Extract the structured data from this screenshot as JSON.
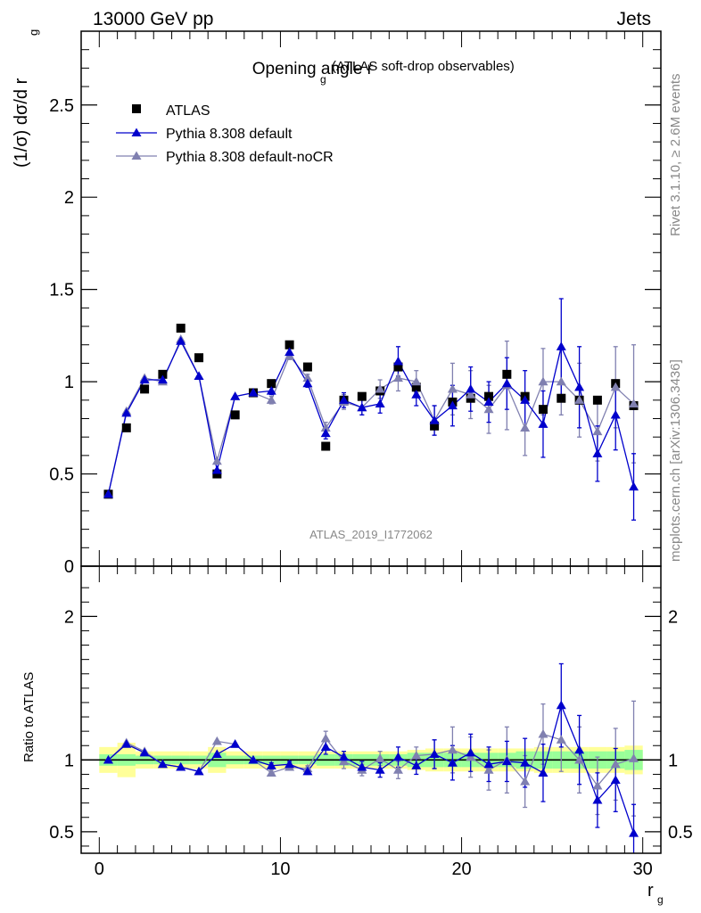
{
  "header": {
    "left": "13000 GeV pp",
    "right": "Jets"
  },
  "side_labels": {
    "rivet": "Rivet 3.1.10, ≥ 2.6M events",
    "mcplots": "mcplots.cern.ch [arXiv:1306.3436]"
  },
  "chart_data": [
    {
      "type": "scatter",
      "title": "Opening angle r",
      "title_sub": "g",
      "title_suffix": "(ATLAS soft-drop observables)",
      "watermark": "ATLAS_2019_I1772062",
      "ylabel": "(1/σ) dσ/d r",
      "ylabel_sub": "g",
      "xlim": [
        -1,
        31
      ],
      "ylim": [
        0,
        2.9
      ],
      "yticks": [
        0,
        0.5,
        1,
        1.5,
        2,
        2.5
      ],
      "ytick_labels": [
        "0",
        "0.5",
        "1",
        "1.5",
        "2",
        "2.5"
      ],
      "x": [
        0.5,
        1.5,
        2.5,
        3.5,
        4.5,
        5.5,
        6.5,
        7.5,
        8.5,
        9.5,
        10.5,
        11.5,
        12.5,
        13.5,
        14.5,
        15.5,
        16.5,
        17.5,
        18.5,
        19.5,
        20.5,
        21.5,
        22.5,
        23.5,
        24.5,
        25.5,
        26.5,
        27.5,
        28.5,
        29.5
      ],
      "series": [
        {
          "name": "ATLAS",
          "color": "#000000",
          "marker": "square",
          "values": [
            0.39,
            0.75,
            0.96,
            1.04,
            1.29,
            1.13,
            0.5,
            0.82,
            0.94,
            0.99,
            1.2,
            1.08,
            0.65,
            0.9,
            0.92,
            0.95,
            1.08,
            0.97,
            0.76,
            0.89,
            0.91,
            0.92,
            1.04,
            0.92,
            0.85,
            0.91,
            0.9,
            0.9,
            0.99,
            0.87
          ]
        },
        {
          "name": "Pythia 8.308 default",
          "color": "#0000cc",
          "marker": "triangle",
          "values": [
            0.39,
            0.83,
            1.01,
            1.01,
            1.22,
            1.03,
            0.52,
            0.92,
            0.94,
            0.95,
            1.16,
            0.99,
            0.72,
            0.9,
            0.86,
            0.88,
            1.11,
            0.93,
            0.79,
            0.87,
            0.96,
            0.89,
            0.99,
            0.9,
            0.77,
            1.19,
            0.97,
            0.61,
            0.82,
            0.43
          ],
          "errors": [
            0.01,
            0.01,
            0.01,
            0.01,
            0.01,
            0.01,
            0.01,
            0.01,
            0.01,
            0.02,
            0.02,
            0.02,
            0.03,
            0.04,
            0.04,
            0.05,
            0.08,
            0.06,
            0.08,
            0.11,
            0.12,
            0.11,
            0.14,
            0.16,
            0.18,
            0.26,
            0.22,
            0.15,
            0.19,
            0.18
          ]
        },
        {
          "name": "Pythia 8.308 default-noCR",
          "color": "#8080b0",
          "marker": "triangle",
          "values": [
            0.39,
            0.84,
            1.02,
            1.0,
            1.23,
            1.03,
            0.57,
            0.92,
            0.94,
            0.9,
            1.14,
            1.02,
            0.75,
            0.89,
            0.86,
            0.96,
            1.02,
            1.0,
            0.79,
            0.96,
            0.93,
            0.85,
            0.98,
            0.75,
            1.0,
            1.0,
            0.9,
            0.73,
            0.97,
            0.88
          ],
          "errors": [
            0.01,
            0.01,
            0.01,
            0.01,
            0.01,
            0.01,
            0.01,
            0.01,
            0.01,
            0.02,
            0.02,
            0.02,
            0.03,
            0.04,
            0.04,
            0.05,
            0.07,
            0.06,
            0.08,
            0.14,
            0.13,
            0.13,
            0.24,
            0.15,
            0.18,
            0.18,
            0.2,
            0.16,
            0.22,
            0.32
          ]
        }
      ]
    },
    {
      "type": "scatter",
      "ylabel": "Ratio to ATLAS",
      "xlabel": "r",
      "xlabel_sub": "g",
      "xlim": [
        -1,
        31
      ],
      "ylim": [
        0.35,
        2.35
      ],
      "xticks": [
        0,
        10,
        20,
        30
      ],
      "xtick_labels": [
        "0",
        "10",
        "20",
        "30"
      ],
      "yticks": [
        0.5,
        1,
        2
      ],
      "ytick_labels": [
        "0.5",
        "1",
        "2"
      ],
      "ratio_band_inner": [
        0.04,
        0.04,
        0.03,
        0.03,
        0.03,
        0.03,
        0.05,
        0.03,
        0.03,
        0.03,
        0.03,
        0.03,
        0.04,
        0.04,
        0.04,
        0.04,
        0.04,
        0.05,
        0.05,
        0.05,
        0.05,
        0.05,
        0.05,
        0.06,
        0.06,
        0.06,
        0.06,
        0.06,
        0.06,
        0.07
      ],
      "ratio_band_outer": [
        0.09,
        0.12,
        0.06,
        0.06,
        0.06,
        0.06,
        0.09,
        0.06,
        0.06,
        0.06,
        0.06,
        0.06,
        0.06,
        0.06,
        0.06,
        0.06,
        0.06,
        0.07,
        0.08,
        0.08,
        0.08,
        0.08,
        0.08,
        0.08,
        0.09,
        0.09,
        0.09,
        0.09,
        0.09,
        0.1
      ],
      "series": [
        {
          "name": "Pythia 8.308 default",
          "values": [
            1.0,
            1.11,
            1.05,
            0.97,
            0.95,
            0.92,
            1.04,
            1.11,
            1.0,
            0.96,
            0.97,
            0.92,
            1.09,
            1.02,
            0.95,
            0.93,
            1.02,
            0.96,
            1.04,
            0.98,
            1.05,
            0.97,
            0.99,
            0.98,
            0.91,
            1.38,
            1.07,
            0.72,
            0.86,
            0.49
          ],
          "errors": [
            0.01,
            0.01,
            0.01,
            0.01,
            0.01,
            0.01,
            0.01,
            0.01,
            0.01,
            0.02,
            0.02,
            0.02,
            0.05,
            0.04,
            0.04,
            0.05,
            0.07,
            0.06,
            0.1,
            0.12,
            0.13,
            0.12,
            0.14,
            0.17,
            0.2,
            0.29,
            0.24,
            0.19,
            0.22,
            0.2
          ]
        },
        {
          "name": "Pythia 8.308 default-noCR",
          "values": [
            1.0,
            1.12,
            1.06,
            0.97,
            0.95,
            0.92,
            1.13,
            1.11,
            1.0,
            0.91,
            0.95,
            0.94,
            1.15,
            0.99,
            0.93,
            1.01,
            0.93,
            1.03,
            1.04,
            1.07,
            1.02,
            0.93,
            1.0,
            0.85,
            1.18,
            1.14,
            1.0,
            0.82,
            0.97,
            1.01
          ],
          "errors": [
            0.01,
            0.01,
            0.01,
            0.01,
            0.01,
            0.01,
            0.01,
            0.01,
            0.01,
            0.02,
            0.02,
            0.02,
            0.05,
            0.05,
            0.04,
            0.05,
            0.06,
            0.06,
            0.1,
            0.16,
            0.14,
            0.14,
            0.23,
            0.18,
            0.21,
            0.22,
            0.23,
            0.2,
            0.25,
            0.4
          ]
        }
      ]
    }
  ]
}
